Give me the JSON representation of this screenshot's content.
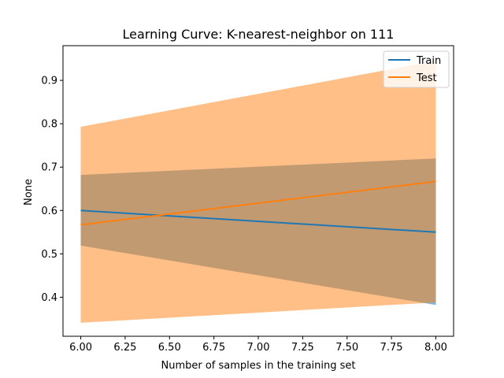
{
  "chart_data": {
    "type": "line",
    "title": "Learning Curve: K-nearest-neighbor on 111",
    "xlabel": "Number of samples in the training set",
    "ylabel": "None",
    "xlim": [
      5.9,
      8.1
    ],
    "ylim": [
      0.31,
      0.98
    ],
    "xticks": [
      "6.00",
      "6.25",
      "6.50",
      "6.75",
      "7.00",
      "7.25",
      "7.50",
      "7.75",
      "8.00"
    ],
    "yticks": [
      "0.4",
      "0.5",
      "0.6",
      "0.7",
      "0.8",
      "0.9"
    ],
    "legend_position": "upper right",
    "series": [
      {
        "name": "Train",
        "color": "#1f77b4",
        "x": [
          6.0,
          8.0
        ],
        "y": [
          0.6,
          0.55
        ],
        "band_low": [
          0.519,
          0.382
        ],
        "band_high": [
          0.682,
          0.72
        ]
      },
      {
        "name": "Test",
        "color": "#ff7f0e",
        "x": [
          6.0,
          8.0
        ],
        "y": [
          0.567,
          0.667
        ],
        "band_low": [
          0.341,
          0.388
        ],
        "band_high": [
          0.793,
          0.945
        ]
      }
    ]
  }
}
